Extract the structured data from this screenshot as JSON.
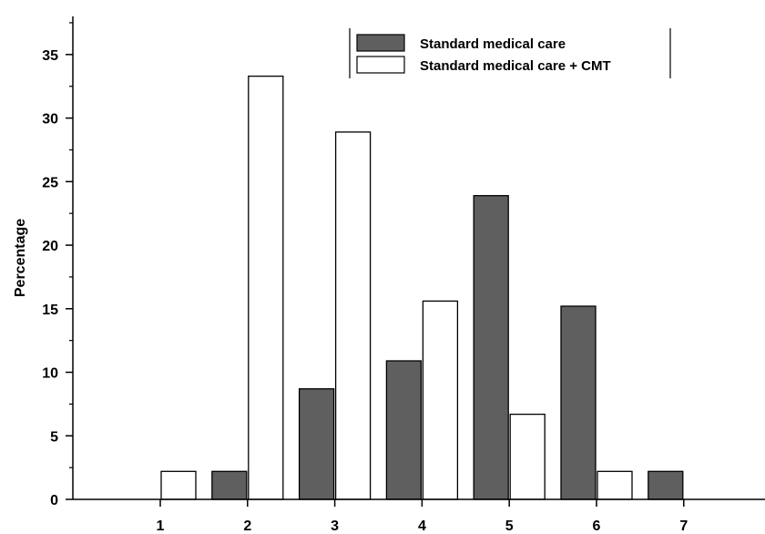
{
  "chart_data": {
    "type": "bar",
    "title": "",
    "xlabel": "",
    "ylabel": "Percentage",
    "categories": [
      "1",
      "2",
      "3",
      "4",
      "5",
      "6",
      "7"
    ],
    "ylim": [
      0,
      38
    ],
    "yticks": [
      0,
      5,
      10,
      15,
      20,
      25,
      30,
      35
    ],
    "grid": false,
    "legend_position": "top-right",
    "series": [
      {
        "name": "Standard medical care",
        "color": "#5f5f5f",
        "values": [
          0,
          2.2,
          8.7,
          10.9,
          23.9,
          15.2,
          2.2
        ]
      },
      {
        "name": "Standard medical care + CMT",
        "color": "#ffffff",
        "values": [
          2.2,
          33.3,
          28.9,
          15.6,
          6.7,
          2.2,
          0
        ]
      }
    ]
  }
}
